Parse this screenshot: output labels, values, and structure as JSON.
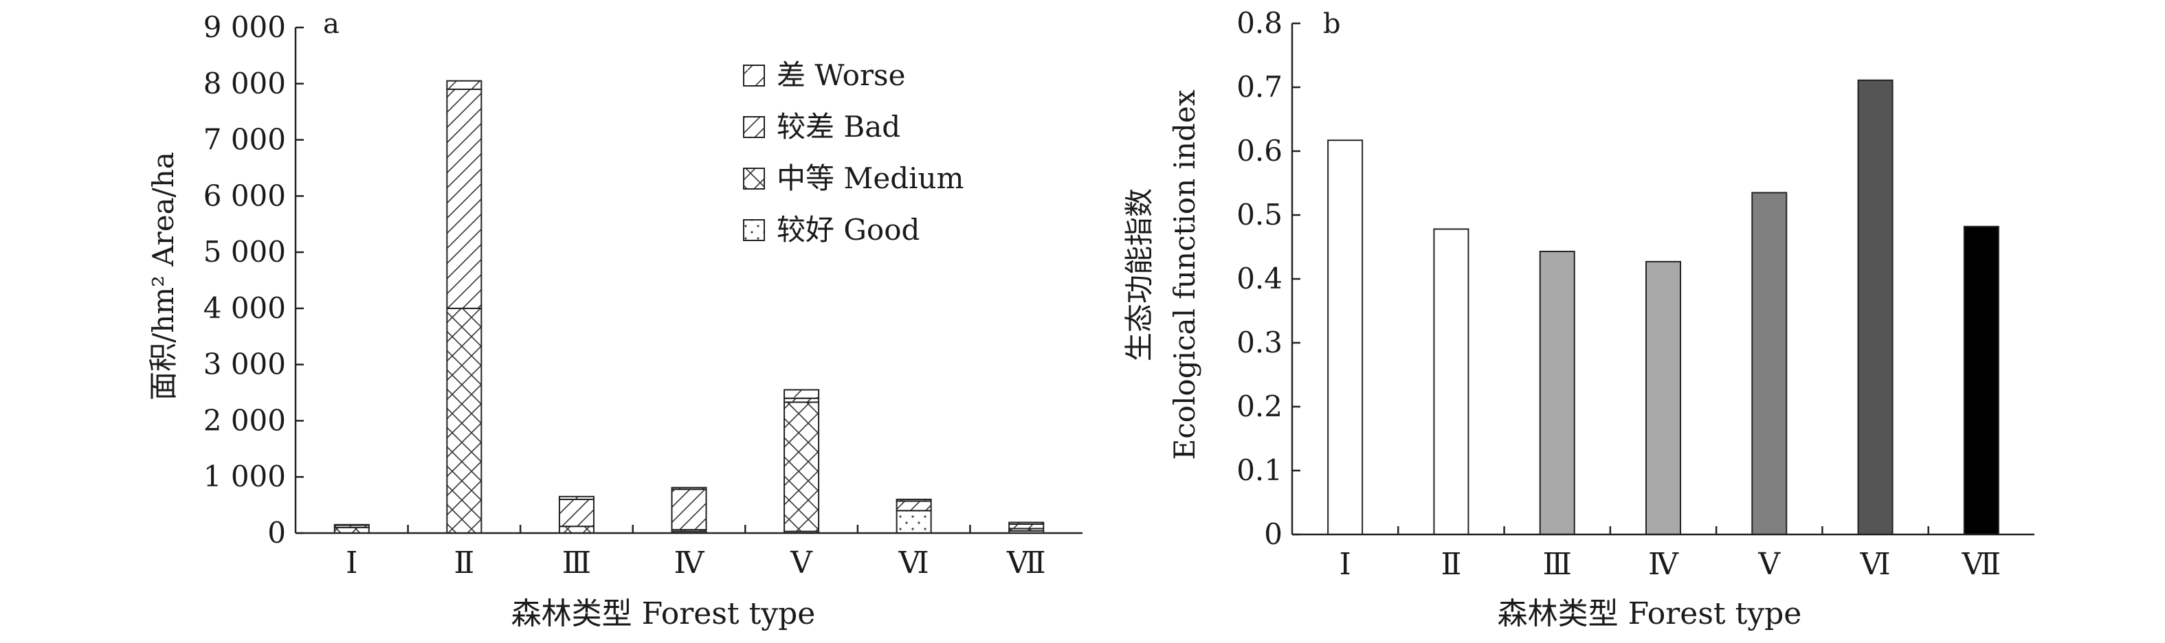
{
  "chart_data": [
    {
      "panel_label": "a",
      "type": "bar",
      "stacked": true,
      "xlabel": "森林类型 Forest type",
      "ylabel": "面积/hm² Area/ha",
      "ylim": [
        0,
        9000
      ],
      "y_ticks": [
        0,
        1000,
        2000,
        3000,
        4000,
        5000,
        6000,
        7000,
        8000,
        9000
      ],
      "y_tick_labels": [
        "0",
        "1 000",
        "2 000",
        "3 000",
        "4 000",
        "5 000",
        "6 000",
        "7 000",
        "8 000",
        "9 000"
      ],
      "categories": [
        "Ⅰ",
        "Ⅱ",
        "Ⅲ",
        "Ⅳ",
        "Ⅴ",
        "Ⅵ",
        "Ⅶ"
      ],
      "legend_position": "top-right",
      "series": [
        {
          "name": "较好 Good",
          "pattern": "dots",
          "values": [
            0,
            0,
            0,
            30,
            30,
            400,
            40
          ]
        },
        {
          "name": "中等 Medium",
          "pattern": "crosshatch",
          "values": [
            100,
            4000,
            120,
            30,
            2300,
            0,
            40
          ]
        },
        {
          "name": "较差 Bad",
          "pattern": "diagonal",
          "values": [
            40,
            3900,
            480,
            720,
            70,
            170,
            80
          ]
        },
        {
          "name": "差 Worse",
          "pattern": "sparse-diagonal",
          "values": [
            10,
            150,
            50,
            30,
            150,
            30,
            30
          ]
        }
      ]
    },
    {
      "panel_label": "b",
      "type": "bar",
      "xlabel": "森林类型 Forest type",
      "ylabel_cn": "生态功能指数",
      "ylabel_en": "Ecological function index",
      "ylim": [
        0,
        0.8
      ],
      "y_ticks": [
        0,
        0.1,
        0.2,
        0.3,
        0.4,
        0.5,
        0.6,
        0.7,
        0.8
      ],
      "y_tick_labels": [
        "0",
        "0.1",
        "0.2",
        "0.3",
        "0.4",
        "0.5",
        "0.6",
        "0.7",
        "0.8"
      ],
      "categories": [
        "Ⅰ",
        "Ⅱ",
        "Ⅲ",
        "Ⅳ",
        "Ⅴ",
        "Ⅵ",
        "Ⅶ"
      ],
      "values": [
        0.617,
        0.478,
        0.443,
        0.427,
        0.535,
        0.711,
        0.482
      ],
      "bar_colors": [
        "#ffffff",
        "#ffffff",
        "#a9a9a9",
        "#a9a9a9",
        "#808080",
        "#555555",
        "#000000"
      ]
    }
  ]
}
